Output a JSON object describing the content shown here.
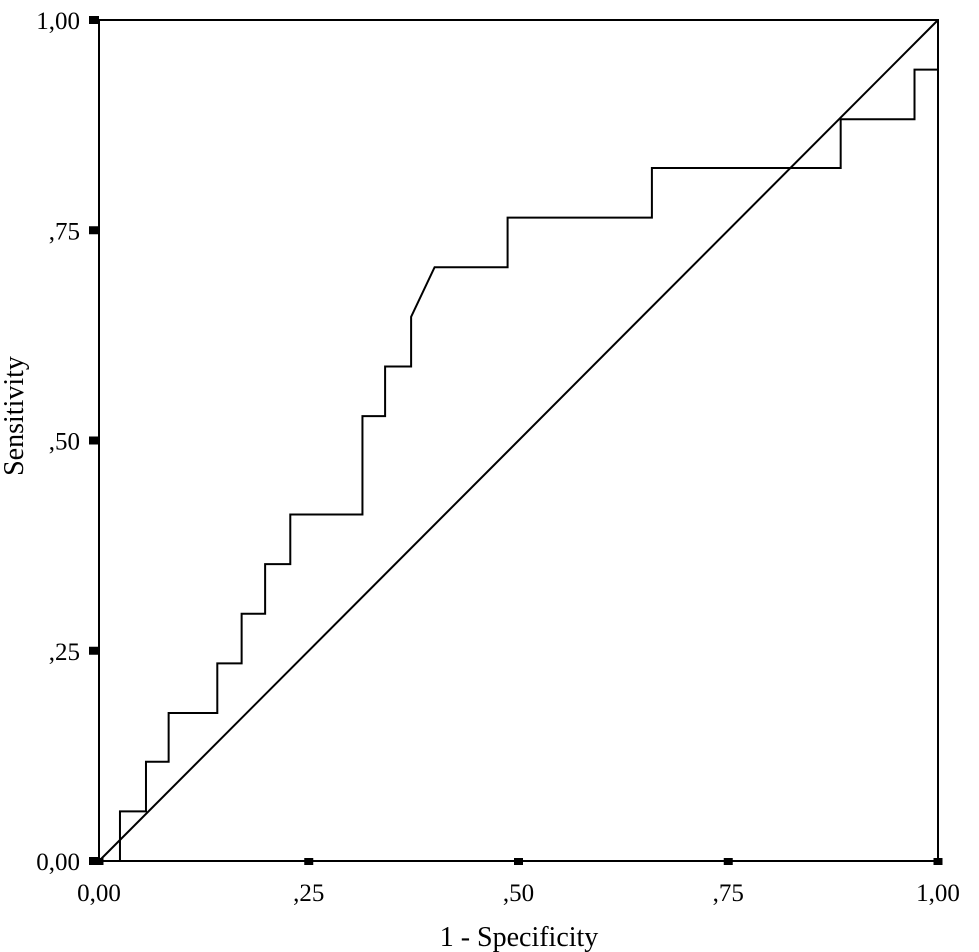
{
  "chart_data": {
    "type": "line",
    "title": "",
    "xlabel": "1 - Specificity",
    "ylabel": "Sensitivity",
    "xlim": [
      0,
      1
    ],
    "ylim": [
      0,
      1
    ],
    "x_ticks": [
      {
        "value": 0,
        "label": "0,00"
      },
      {
        "value": 0.25,
        "label": ",25"
      },
      {
        "value": 0.5,
        "label": ",50"
      },
      {
        "value": 0.75,
        "label": ",75"
      },
      {
        "value": 1,
        "label": "1,00"
      }
    ],
    "y_ticks": [
      {
        "value": 0,
        "label": "0,00"
      },
      {
        "value": 0.25,
        "label": ",25"
      },
      {
        "value": 0.5,
        "label": ",50"
      },
      {
        "value": 0.75,
        "label": ",75"
      },
      {
        "value": 1,
        "label": "1,00"
      }
    ],
    "grid": false,
    "legend": "none",
    "series": [
      {
        "points": [
          [
            0.0,
            0.0
          ],
          [
            0.025,
            0.0
          ],
          [
            0.025,
            0.059
          ],
          [
            0.056,
            0.059
          ],
          [
            0.056,
            0.118
          ],
          [
            0.083,
            0.118
          ],
          [
            0.083,
            0.176
          ],
          [
            0.141,
            0.176
          ],
          [
            0.141,
            0.235
          ],
          [
            0.17,
            0.235
          ],
          [
            0.17,
            0.294
          ],
          [
            0.198,
            0.294
          ],
          [
            0.198,
            0.353
          ],
          [
            0.228,
            0.353
          ],
          [
            0.228,
            0.412
          ],
          [
            0.314,
            0.412
          ],
          [
            0.314,
            0.529
          ],
          [
            0.341,
            0.529
          ],
          [
            0.341,
            0.588
          ],
          [
            0.372,
            0.588
          ],
          [
            0.372,
            0.647
          ],
          [
            0.4,
            0.706
          ],
          [
            0.487,
            0.706
          ],
          [
            0.487,
            0.765
          ],
          [
            0.659,
            0.765
          ],
          [
            0.659,
            0.824
          ],
          [
            0.884,
            0.824
          ],
          [
            0.884,
            0.882
          ],
          [
            0.972,
            0.882
          ],
          [
            0.972,
            0.941
          ],
          [
            1.0,
            0.941
          ],
          [
            1.0,
            1.0
          ]
        ]
      },
      {
        "points": [
          [
            0,
            0
          ],
          [
            1,
            1
          ]
        ]
      }
    ]
  }
}
